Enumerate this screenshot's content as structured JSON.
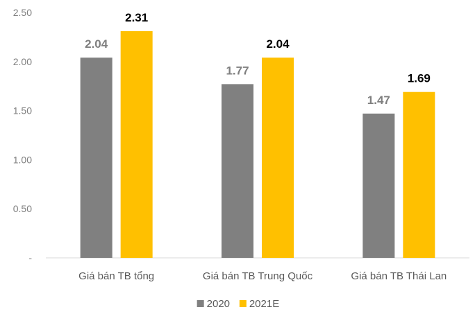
{
  "chart_data": {
    "type": "bar",
    "categories": [
      "Giá bán TB tổng",
      "Giá bán TB Trung Quốc",
      "Giá bán TB Thái Lan"
    ],
    "series": [
      {
        "name": "2020",
        "values": [
          2.04,
          1.77,
          1.47
        ],
        "color": "#808080",
        "label_color": "#7f7f7f"
      },
      {
        "name": "2021E",
        "values": [
          2.31,
          2.04,
          1.69
        ],
        "color": "#ffc000",
        "label_color": "#000000"
      }
    ],
    "y_ticks": [
      "-",
      "0.50",
      "1.00",
      "1.50",
      "2.00",
      "2.50"
    ],
    "ylim": [
      0,
      2.5
    ],
    "grid": false,
    "legend": "bottom-center",
    "title": "",
    "xlabel": "",
    "ylabel": ""
  }
}
